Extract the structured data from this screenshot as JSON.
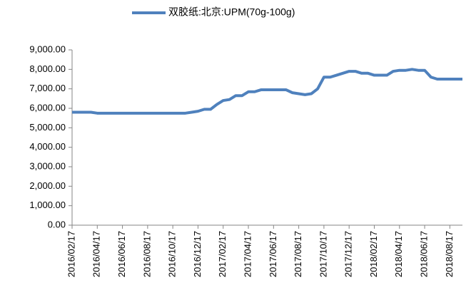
{
  "chart_data": {
    "type": "line",
    "categories": [
      "2016/02/17",
      null,
      null,
      null,
      "2016/04/17",
      null,
      null,
      null,
      "2016/06/17",
      null,
      null,
      null,
      "2016/08/17",
      null,
      null,
      null,
      "2016/10/17",
      null,
      null,
      null,
      "2016/12/17",
      null,
      null,
      null,
      "2017/02/17",
      null,
      null,
      null,
      "2017/04/17",
      null,
      null,
      null,
      "2017/06/17",
      null,
      null,
      null,
      "2017/08/17",
      null,
      null,
      null,
      "2017/10/17",
      null,
      null,
      null,
      "2017/12/17",
      null,
      null,
      null,
      "2018/02/17",
      null,
      null,
      null,
      "2018/04/17",
      null,
      null,
      null,
      "2018/06/17",
      null,
      null,
      null,
      "2018/08/17",
      null,
      null
    ],
    "series": [
      {
        "name": "双胶纸:北京:UPM(70g-100g)",
        "color": "#4f81bd",
        "values": [
          5800,
          5800,
          5800,
          5800,
          5750,
          5750,
          5750,
          5750,
          5750,
          5750,
          5750,
          5750,
          5750,
          5750,
          5750,
          5750,
          5750,
          5750,
          5750,
          5800,
          5850,
          5950,
          5950,
          6200,
          6400,
          6450,
          6650,
          6650,
          6850,
          6850,
          6950,
          6950,
          6950,
          6950,
          6950,
          6800,
          6750,
          6700,
          6750,
          7000,
          7600,
          7600,
          7700,
          7800,
          7900,
          7900,
          7800,
          7800,
          7700,
          7700,
          7700,
          7900,
          7950,
          7950,
          8000,
          7950,
          7950,
          7600,
          7500,
          7500,
          7500,
          7500,
          7500
        ]
      }
    ],
    "ylim": [
      0,
      9000
    ],
    "yticks": [
      {
        "value": 0,
        "label": "0.00"
      },
      {
        "value": 1000,
        "label": "1,000.00"
      },
      {
        "value": 2000,
        "label": "2,000.00"
      },
      {
        "value": 3000,
        "label": "3,000.00"
      },
      {
        "value": 4000,
        "label": "4,000.00"
      },
      {
        "value": 5000,
        "label": "5,000.00"
      },
      {
        "value": 6000,
        "label": "6,000.00"
      },
      {
        "value": 7000,
        "label": "7,000.00"
      },
      {
        "value": 8000,
        "label": "8,000.00"
      },
      {
        "value": 9000,
        "label": "9,000.00"
      }
    ],
    "grid": false,
    "legend": "top"
  }
}
